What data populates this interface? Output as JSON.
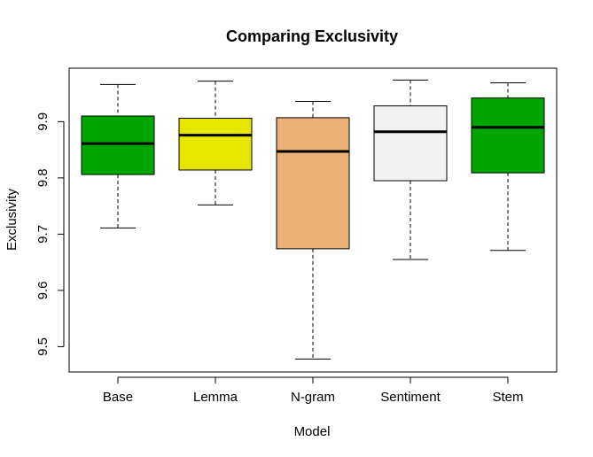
{
  "chart_data": {
    "type": "boxplot",
    "title": "Comparing Exclusivity",
    "xlabel": "Model",
    "ylabel": "Exclusivity",
    "ylim": [
      9.455,
      9.995
    ],
    "yticks": [
      9.5,
      9.6,
      9.7,
      9.8,
      9.9
    ],
    "ytick_labels": [
      "9.5",
      "9.6",
      "9.7",
      "9.8",
      "9.9"
    ],
    "grid": false,
    "categories": [
      "Base",
      "Lemma",
      "N-gram",
      "Sentiment",
      "Stem"
    ],
    "boxes": [
      {
        "name": "Base",
        "whisker_low": 9.711,
        "q1": 9.806,
        "median": 9.861,
        "q3": 9.91,
        "whisker_high": 9.966,
        "color": "#00a600"
      },
      {
        "name": "Lemma",
        "whisker_low": 9.752,
        "q1": 9.814,
        "median": 9.876,
        "q3": 9.906,
        "whisker_high": 9.972,
        "color": "#e6e600"
      },
      {
        "name": "N-gram",
        "whisker_low": 9.478,
        "q1": 9.674,
        "median": 9.847,
        "q3": 9.907,
        "whisker_high": 9.936,
        "color": "#ecb176"
      },
      {
        "name": "Sentiment",
        "whisker_low": 9.655,
        "q1": 9.795,
        "median": 9.882,
        "q3": 9.928,
        "whisker_high": 9.974,
        "color": "#f2f2f2"
      },
      {
        "name": "Stem",
        "whisker_low": 9.671,
        "q1": 9.809,
        "median": 9.89,
        "q3": 9.942,
        "whisker_high": 9.969,
        "color": "#00a600"
      }
    ]
  }
}
